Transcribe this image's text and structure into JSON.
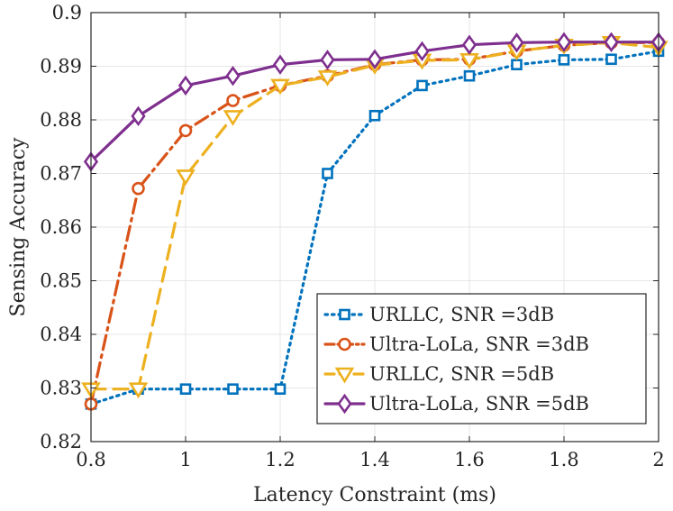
{
  "chart_data": {
    "type": "line",
    "title": "",
    "xlabel": "Latency Constraint (ms)",
    "ylabel": "Sensing Accuracy",
    "xlim": [
      0.8,
      2.0
    ],
    "ylim": [
      0.82,
      0.9
    ],
    "grid": true,
    "legend_position": "bottom-right",
    "x": [
      0.8,
      0.9,
      1.0,
      1.1,
      1.2,
      1.3,
      1.4,
      1.5,
      1.6,
      1.7,
      1.8,
      1.9,
      2.0
    ],
    "x_tick_labels": [
      "0.8",
      "1",
      "1.2",
      "1.4",
      "1.6",
      "1.8",
      "2"
    ],
    "x_ticks": [
      0.8,
      1.0,
      1.2,
      1.4,
      1.6,
      1.8,
      2.0
    ],
    "y_tick_labels": [
      "0.82",
      "0.83",
      "0.84",
      "0.85",
      "0.86",
      "0.87",
      "0.88",
      "0.89",
      "0.9"
    ],
    "y_ticks": [
      0.82,
      0.83,
      0.84,
      0.85,
      0.86,
      0.87,
      0.88,
      0.89,
      0.9
    ],
    "series": [
      {
        "name": "URLLC, SNR =3dB",
        "color": "#0072BD",
        "line_style": "dotted",
        "marker": "square",
        "values": [
          0.827,
          0.8298,
          0.8298,
          0.8298,
          0.8298,
          0.87,
          0.8808,
          0.8864,
          0.8882,
          0.8903,
          0.8912,
          0.8913,
          0.8928
        ]
      },
      {
        "name": "Ultra-LoLa, SNR =3dB",
        "color": "#D95319",
        "line_style": "dashdot",
        "marker": "circle",
        "values": [
          0.827,
          0.8672,
          0.878,
          0.8836,
          0.8864,
          0.8882,
          0.8903,
          0.8912,
          0.8913,
          0.8928,
          0.8939,
          0.8944,
          0.8944
        ]
      },
      {
        "name": "URLLC, SNR =5dB",
        "color": "#EDB120",
        "line_style": "dashed",
        "marker": "triangle-down",
        "values": [
          0.8298,
          0.8298,
          0.8695,
          0.8806,
          0.8864,
          0.888,
          0.8902,
          0.8911,
          0.8912,
          0.8928,
          0.8939,
          0.8944,
          0.8935
        ]
      },
      {
        "name": "Ultra-LoLa, SNR =5dB",
        "color": "#7E2F8E",
        "line_style": "solid",
        "marker": "diamond",
        "values": [
          0.8722,
          0.8807,
          0.8864,
          0.8882,
          0.8903,
          0.8912,
          0.8913,
          0.8928,
          0.894,
          0.8944,
          0.8945,
          0.8945,
          0.8945
        ]
      }
    ]
  }
}
